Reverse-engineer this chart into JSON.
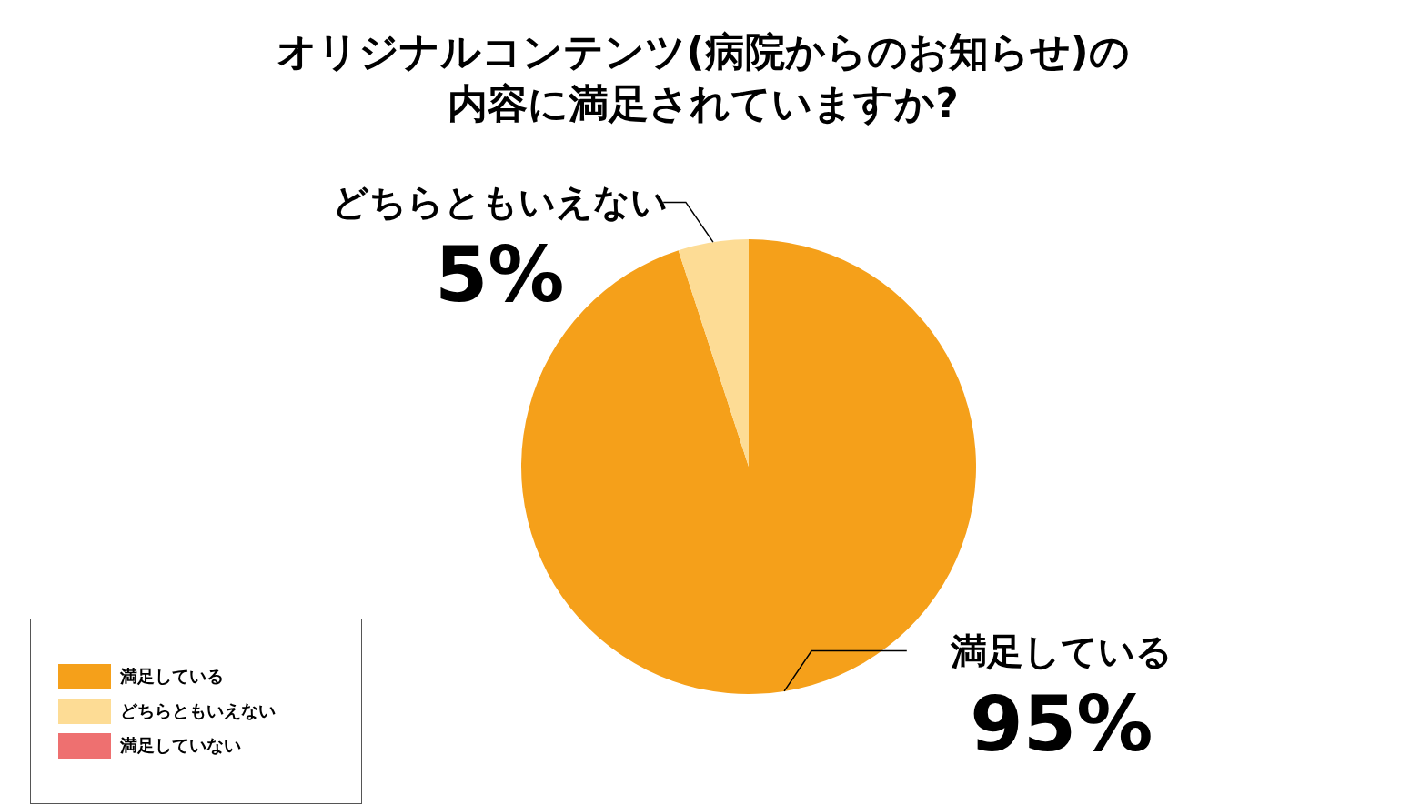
{
  "chart_data": {
    "type": "pie",
    "title": "オリジナルコンテンツ(病院からのお知らせ)の内容に満足されていますか?",
    "categories": [
      "満足している",
      "どちらともいえない",
      "満足していない"
    ],
    "values": [
      95,
      5,
      0
    ],
    "colors": [
      "#f5a01a",
      "#fddc95",
      "#ee7070"
    ],
    "value_labels": [
      "95%",
      "5%",
      null
    ],
    "legend": "bottom left"
  }
}
